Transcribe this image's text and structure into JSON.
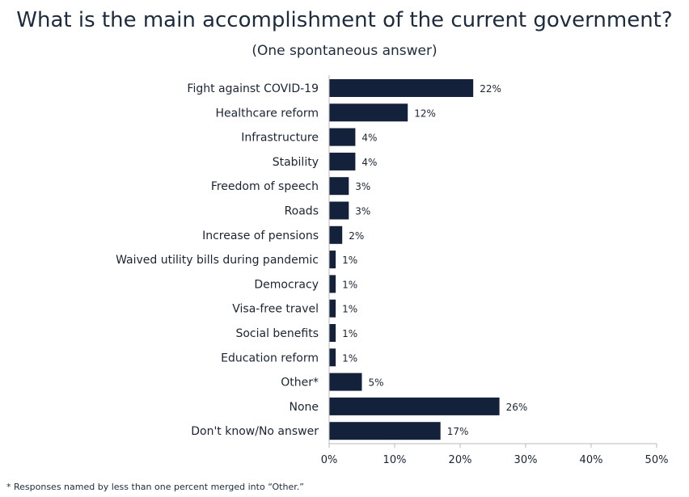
{
  "chart_data": {
    "type": "bar",
    "orientation": "horizontal",
    "title": "What is the main accomplishment of the current government?",
    "subtitle": "(One spontaneous answer)",
    "categories": [
      "Fight against COVID-19",
      "Healthcare reform",
      "Infrastructure",
      "Stability",
      "Freedom of speech",
      "Roads",
      "Increase of pensions",
      "Waived utility bills during pandemic",
      "Democracy",
      "Visa-free travel",
      "Social benefits",
      "Education reform",
      "Other*",
      "None",
      "Don't know/No answer"
    ],
    "values": [
      22,
      12,
      4,
      4,
      3,
      3,
      2,
      1,
      1,
      1,
      1,
      1,
      5,
      26,
      17
    ],
    "value_suffix": "%",
    "xlim": [
      0,
      50
    ],
    "xticks": [
      "0%",
      "10%",
      "20%",
      "30%",
      "40%",
      "50%"
    ],
    "bar_color": "#14213a",
    "grid": false,
    "footnote": "* Responses named by less than one percent merged into “Other.”"
  }
}
